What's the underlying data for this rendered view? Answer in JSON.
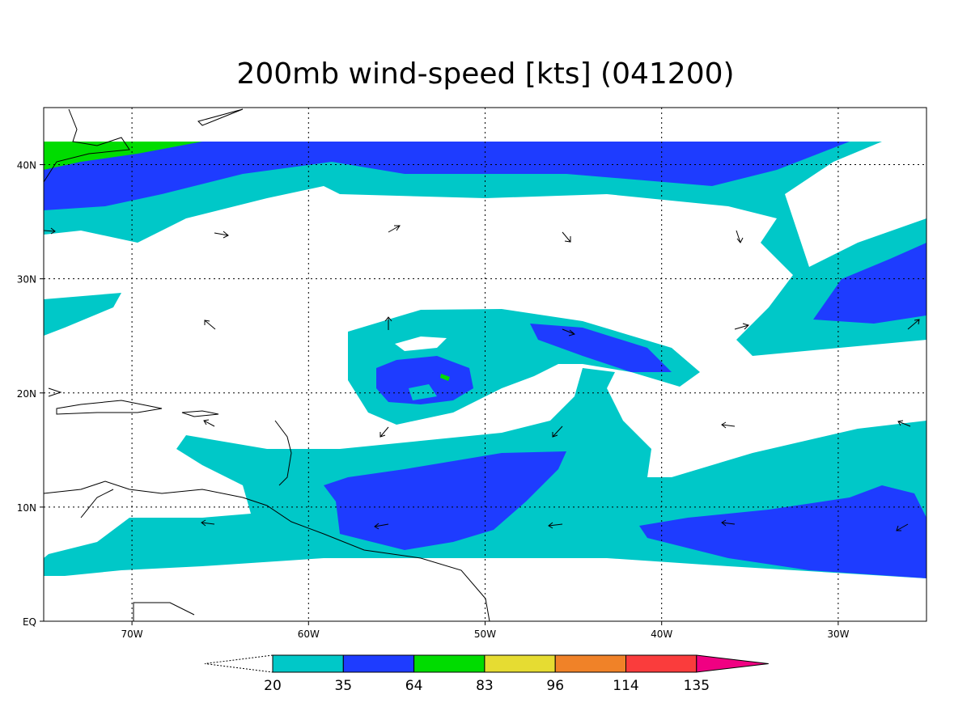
{
  "title": "200mb wind-speed [kts] (041200)",
  "map": {
    "lonlim": [
      -75,
      -25
    ],
    "latlim": [
      0,
      45
    ],
    "lon_ticks": [
      {
        "value": -70,
        "label": "70W"
      },
      {
        "value": -60,
        "label": "60W"
      },
      {
        "value": -50,
        "label": "50W"
      },
      {
        "value": -40,
        "label": "40W"
      },
      {
        "value": -30,
        "label": "30W"
      }
    ],
    "lat_ticks": [
      {
        "value": 0,
        "label": "EQ"
      },
      {
        "value": 10,
        "label": "10N"
      },
      {
        "value": 20,
        "label": "20N"
      },
      {
        "value": 30,
        "label": "30N"
      },
      {
        "value": 40,
        "label": "40N"
      }
    ]
  },
  "colorbar": {
    "levels": [
      20,
      35,
      64,
      83,
      96,
      114,
      135
    ],
    "colors": [
      "#00c8c8",
      "#1e3cff",
      "#00dc00",
      "#e6dc32",
      "#f08228",
      "#fa3c3c",
      "#f00082"
    ]
  }
}
